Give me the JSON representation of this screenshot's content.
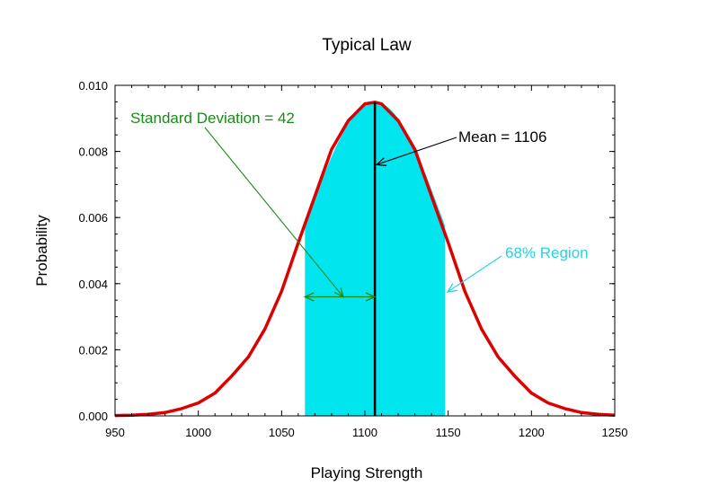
{
  "chart_data": {
    "type": "line",
    "title": "Typical Law",
    "xlabel": "Playing Strength",
    "ylabel": "Probability",
    "xlim": [
      950,
      1250
    ],
    "ylim": [
      0,
      0.01
    ],
    "x_ticks": [
      "950",
      "1000",
      "1050",
      "1100",
      "1150",
      "1200",
      "1250"
    ],
    "y_ticks": [
      "0.000",
      "0.002",
      "0.004",
      "0.006",
      "0.008",
      "0.010"
    ],
    "grid": false,
    "mean": 1106,
    "std_dev": 42,
    "series": [
      {
        "x": [
          950,
          960,
          970,
          980,
          990,
          1000,
          1010,
          1020,
          1030,
          1040,
          1050,
          1060,
          1070,
          1080,
          1090,
          1100,
          1106,
          1110,
          1120,
          1130,
          1140,
          1150,
          1160,
          1170,
          1180,
          1190,
          1200,
          1210,
          1220,
          1230,
          1240,
          1250
        ],
        "y": [
          1e-05,
          2e-05,
          5e-05,
          0.0001,
          0.00022,
          0.00039,
          0.00069,
          0.0012,
          0.00178,
          0.00263,
          0.00377,
          0.00524,
          0.00665,
          0.00806,
          0.00893,
          0.00944,
          0.00949,
          0.00944,
          0.00893,
          0.00806,
          0.00665,
          0.00524,
          0.00377,
          0.00263,
          0.00178,
          0.0012,
          0.00069,
          0.00039,
          0.00022,
          0.0001,
          5e-05,
          2e-05
        ],
        "color": "#dd0000"
      }
    ],
    "shaded_region": {
      "x_from": 1064,
      "x_to": 1148,
      "color": "#00e5ee"
    },
    "annotations": {
      "std_dev_label": "Standard Deviation = 42",
      "mean_label": "Mean = 1106",
      "region_label": "68% Region"
    },
    "colors": {
      "curve": "#dd0000",
      "region": "#00e5ee",
      "std_dev": "#1a8a1a",
      "mean": "#000000",
      "region_text": "#22d4e6"
    }
  }
}
